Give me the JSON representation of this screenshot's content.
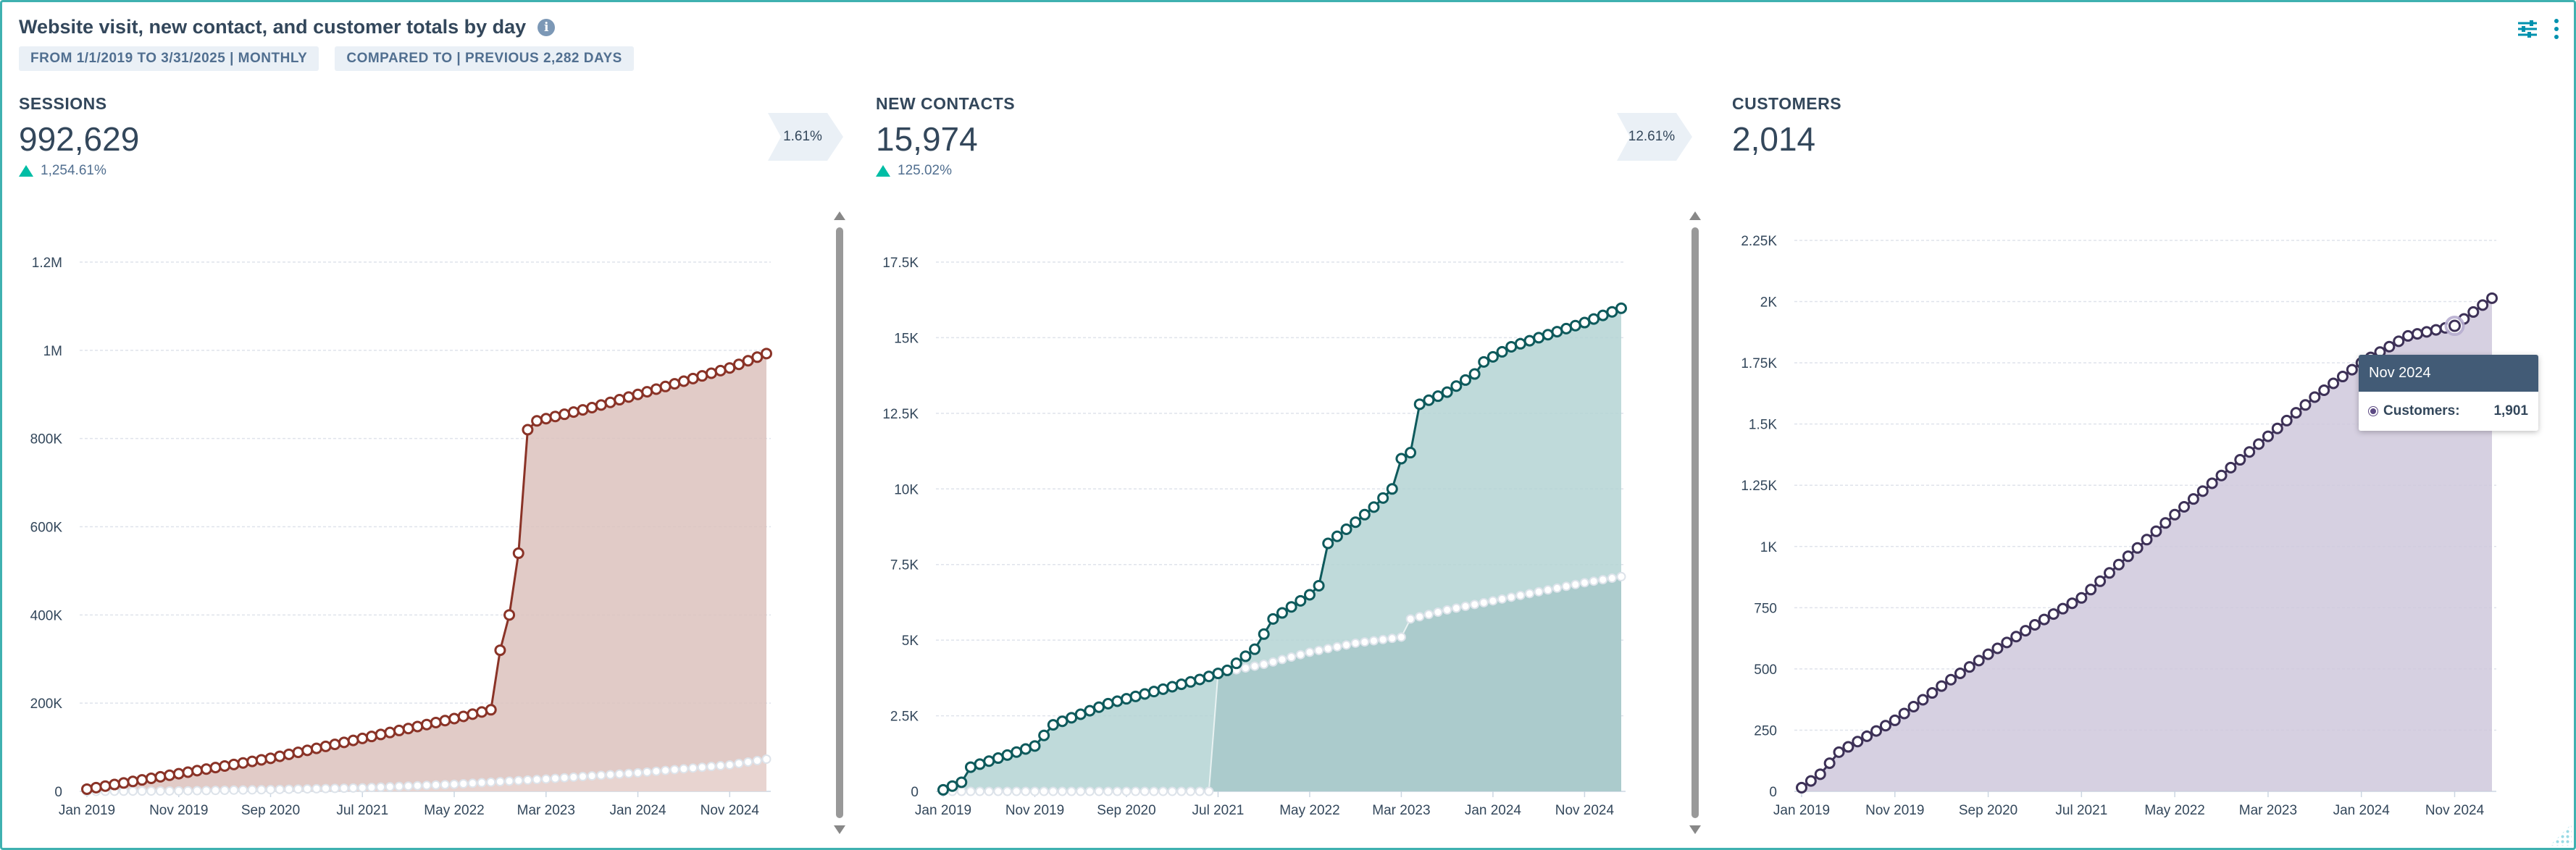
{
  "report": {
    "title": "Website visit, new contact, and customer totals by day",
    "info_icon": "info-icon",
    "date_range_pill": "FROM 1/1/2019 TO 3/31/2025 | MONTHLY",
    "compare_pill": "COMPARED TO | PREVIOUS 2,282 DAYS",
    "filter_icon": "filter-sliders-icon",
    "menu_icon": "kebab-menu-icon"
  },
  "metrics": [
    {
      "label": "SESSIONS",
      "value": "992,629",
      "change": "1,254.61%",
      "change_dir": "up"
    },
    {
      "label": "NEW CONTACTS",
      "value": "15,974",
      "change": "125.02%",
      "change_dir": "up"
    },
    {
      "label": "CUSTOMERS",
      "value": "2,014"
    }
  ],
  "conversions": [
    "1.61%",
    "12.61%"
  ],
  "tooltip": {
    "title": "Nov 2024",
    "series": "Customers:",
    "value": "1,901"
  },
  "colors": {
    "sessions_line": "#8a3327",
    "sessions_fill": "#dcc2bd",
    "contacts_line": "#0e5a5c",
    "contacts_fill": "#b4d3d4",
    "customers_line": "#3d3157",
    "customers_fill": "#cfc8dc",
    "grid": "#dfe3eb",
    "accent": "#00bda5"
  },
  "chart_data": [
    {
      "type": "area",
      "title": "SESSIONS",
      "x_ticks": [
        "Jan 2019",
        "Nov 2019",
        "Sep 2020",
        "Jul 2021",
        "May 2022",
        "Mar 2023",
        "Jan 2024",
        "Nov 2024"
      ],
      "y_ticks": [
        "0",
        "200K",
        "400K",
        "600K",
        "800K",
        "1M",
        "1.2M"
      ],
      "ylim": [
        0,
        1200000
      ],
      "points": 75,
      "series": [
        {
          "name": "Sessions",
          "anchors": [
            [
              0,
              5000
            ],
            [
              10,
              40000
            ],
            [
              20,
              75000
            ],
            [
              30,
              120000
            ],
            [
              40,
              165000
            ],
            [
              44,
              185000
            ],
            [
              45,
              320000
            ],
            [
              46,
              400000
            ],
            [
              47,
              540000
            ],
            [
              48,
              820000
            ],
            [
              49,
              840000
            ],
            [
              55,
              870000
            ],
            [
              60,
              900000
            ],
            [
              65,
              930000
            ],
            [
              70,
              960000
            ],
            [
              74,
              992629
            ]
          ]
        },
        {
          "name": "Previous period",
          "anchors": [
            [
              0,
              0
            ],
            [
              10,
              1000
            ],
            [
              20,
              4000
            ],
            [
              30,
              8000
            ],
            [
              40,
              16000
            ],
            [
              50,
              28000
            ],
            [
              60,
              42000
            ],
            [
              70,
              60000
            ],
            [
              74,
              73000
            ]
          ]
        }
      ]
    },
    {
      "type": "area",
      "title": "NEW CONTACTS",
      "x_ticks": [
        "Jan 2019",
        "Nov 2019",
        "Sep 2020",
        "Jul 2021",
        "May 2022",
        "Mar 2023",
        "Jan 2024",
        "Nov 2024"
      ],
      "y_ticks": [
        "0",
        "2.5K",
        "5K",
        "7.5K",
        "10K",
        "12.5K",
        "15K",
        "17.5K"
      ],
      "ylim": [
        0,
        17500
      ],
      "points": 75,
      "series": [
        {
          "name": "New contacts",
          "anchors": [
            [
              0,
              50
            ],
            [
              2,
              300
            ],
            [
              3,
              800
            ],
            [
              10,
              1500
            ],
            [
              12,
              2200
            ],
            [
              18,
              2900
            ],
            [
              23,
              3300
            ],
            [
              28,
              3700
            ],
            [
              31,
              4000
            ],
            [
              34,
              4700
            ],
            [
              36,
              5700
            ],
            [
              40,
              6500
            ],
            [
              41,
              6800
            ],
            [
              42,
              8200
            ],
            [
              45,
              8900
            ],
            [
              47,
              9400
            ],
            [
              49,
              10000
            ],
            [
              50,
              11000
            ],
            [
              51,
              11200
            ],
            [
              52,
              12800
            ],
            [
              55,
              13200
            ],
            [
              58,
              13800
            ],
            [
              59,
              14200
            ],
            [
              62,
              14700
            ],
            [
              66,
              15100
            ],
            [
              70,
              15500
            ],
            [
              74,
              15974
            ]
          ]
        },
        {
          "name": "Previous period",
          "anchors": [
            [
              0,
              0
            ],
            [
              29,
              0
            ],
            [
              30,
              3900
            ],
            [
              35,
              4200
            ],
            [
              40,
              4600
            ],
            [
              45,
              4900
            ],
            [
              50,
              5100
            ],
            [
              51,
              5700
            ],
            [
              55,
              6000
            ],
            [
              60,
              6300
            ],
            [
              65,
              6600
            ],
            [
              70,
              6900
            ],
            [
              74,
              7100
            ]
          ]
        }
      ]
    },
    {
      "type": "area",
      "title": "CUSTOMERS",
      "x_ticks": [
        "Jan 2019",
        "Nov 2019",
        "Sep 2020",
        "Jul 2021",
        "May 2022",
        "Mar 2023",
        "Jan 2024",
        "Nov 2024"
      ],
      "y_ticks": [
        "0",
        "250",
        "500",
        "750",
        "1K",
        "1.25K",
        "1.5K",
        "1.75K",
        "2K",
        "2.25K"
      ],
      "ylim": [
        0,
        2250
      ],
      "points": 75,
      "series": [
        {
          "name": "Customers",
          "anchors": [
            [
              0,
              15
            ],
            [
              2,
              70
            ],
            [
              4,
              160
            ],
            [
              10,
              290
            ],
            [
              15,
              430
            ],
            [
              20,
              560
            ],
            [
              25,
              680
            ],
            [
              30,
              790
            ],
            [
              35,
              960
            ],
            [
              40,
              1130
            ],
            [
              45,
              1290
            ],
            [
              50,
              1450
            ],
            [
              55,
              1610
            ],
            [
              60,
              1750
            ],
            [
              65,
              1860
            ],
            [
              70,
              1901
            ],
            [
              74,
              2014
            ]
          ]
        }
      ]
    }
  ]
}
